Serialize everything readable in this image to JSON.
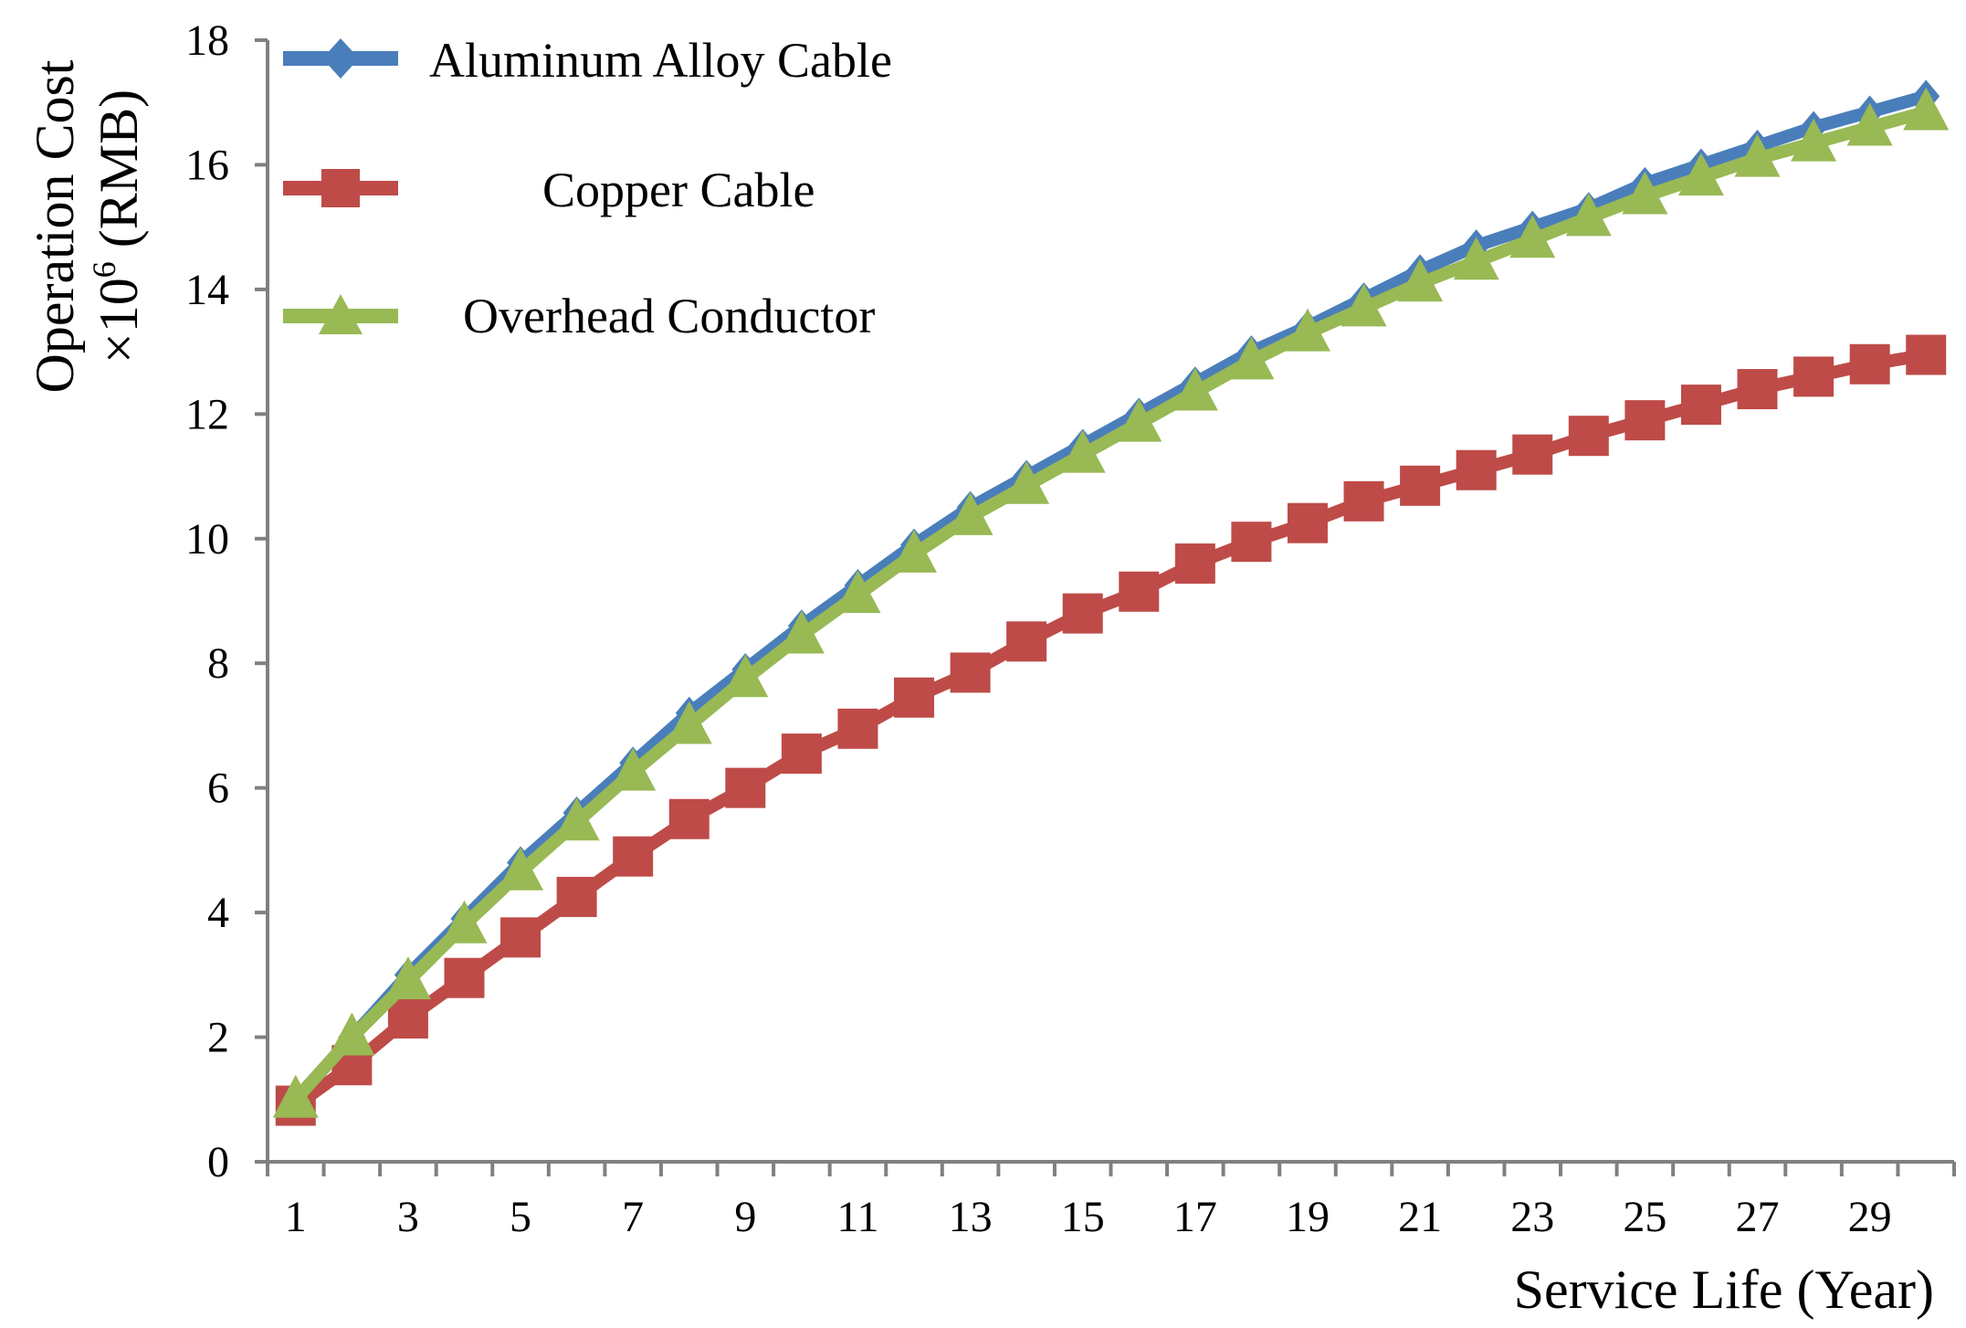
{
  "chart_data": {
    "type": "line",
    "title": "",
    "xlabel": "Service Life (Year)",
    "ylabel_line1": "Operation Cost",
    "ylabel_line2_prefix": "×10",
    "ylabel_line2_exp": "6",
    "ylabel_line2_suffix": " (RMB)",
    "xlim": [
      0,
      30
    ],
    "ylim": [
      0,
      18
    ],
    "yticks": [
      "0",
      "2",
      "4",
      "6",
      "8",
      "10",
      "12",
      "14",
      "16",
      "18"
    ],
    "xticks": [
      "1",
      "3",
      "5",
      "7",
      "9",
      "11",
      "13",
      "15",
      "17",
      "19",
      "21",
      "23",
      "25",
      "27",
      "29"
    ],
    "x": [
      1,
      2,
      3,
      4,
      5,
      6,
      7,
      8,
      9,
      10,
      11,
      12,
      13,
      14,
      15,
      16,
      17,
      18,
      19,
      20,
      21,
      22,
      23,
      24,
      25,
      26,
      27,
      28,
      29,
      30
    ],
    "series": [
      {
        "name": "Aluminum Alloy Cable",
        "color": "#4A7EBB",
        "marker": "diamond",
        "values": [
          1.0,
          2.0,
          3.0,
          3.9,
          4.8,
          5.6,
          6.4,
          7.2,
          7.9,
          8.6,
          9.25,
          9.9,
          10.5,
          11.0,
          11.5,
          12.0,
          12.5,
          13.0,
          13.4,
          13.85,
          14.3,
          14.7,
          15.0,
          15.3,
          15.7,
          16.0,
          16.3,
          16.6,
          16.85,
          17.1
        ]
      },
      {
        "name": "Copper Cable",
        "color": "#BE4B48",
        "marker": "square",
        "values": [
          0.9,
          1.55,
          2.3,
          2.95,
          3.6,
          4.25,
          4.9,
          5.5,
          6.0,
          6.55,
          6.95,
          7.45,
          7.85,
          8.35,
          8.8,
          9.15,
          9.6,
          9.95,
          10.25,
          10.6,
          10.85,
          11.1,
          11.35,
          11.65,
          11.9,
          12.15,
          12.4,
          12.6,
          12.8,
          12.95
        ]
      },
      {
        "name": "Overhead Conductor",
        "color": "#98B954",
        "marker": "triangle",
        "values": [
          1.0,
          2.0,
          2.9,
          3.8,
          4.65,
          5.45,
          6.25,
          7.0,
          7.75,
          8.45,
          9.1,
          9.75,
          10.35,
          10.85,
          11.35,
          11.85,
          12.35,
          12.85,
          13.3,
          13.7,
          14.1,
          14.45,
          14.8,
          15.15,
          15.5,
          15.8,
          16.1,
          16.35,
          16.6,
          16.85
        ]
      }
    ],
    "legend": "top-left, inside plot"
  }
}
